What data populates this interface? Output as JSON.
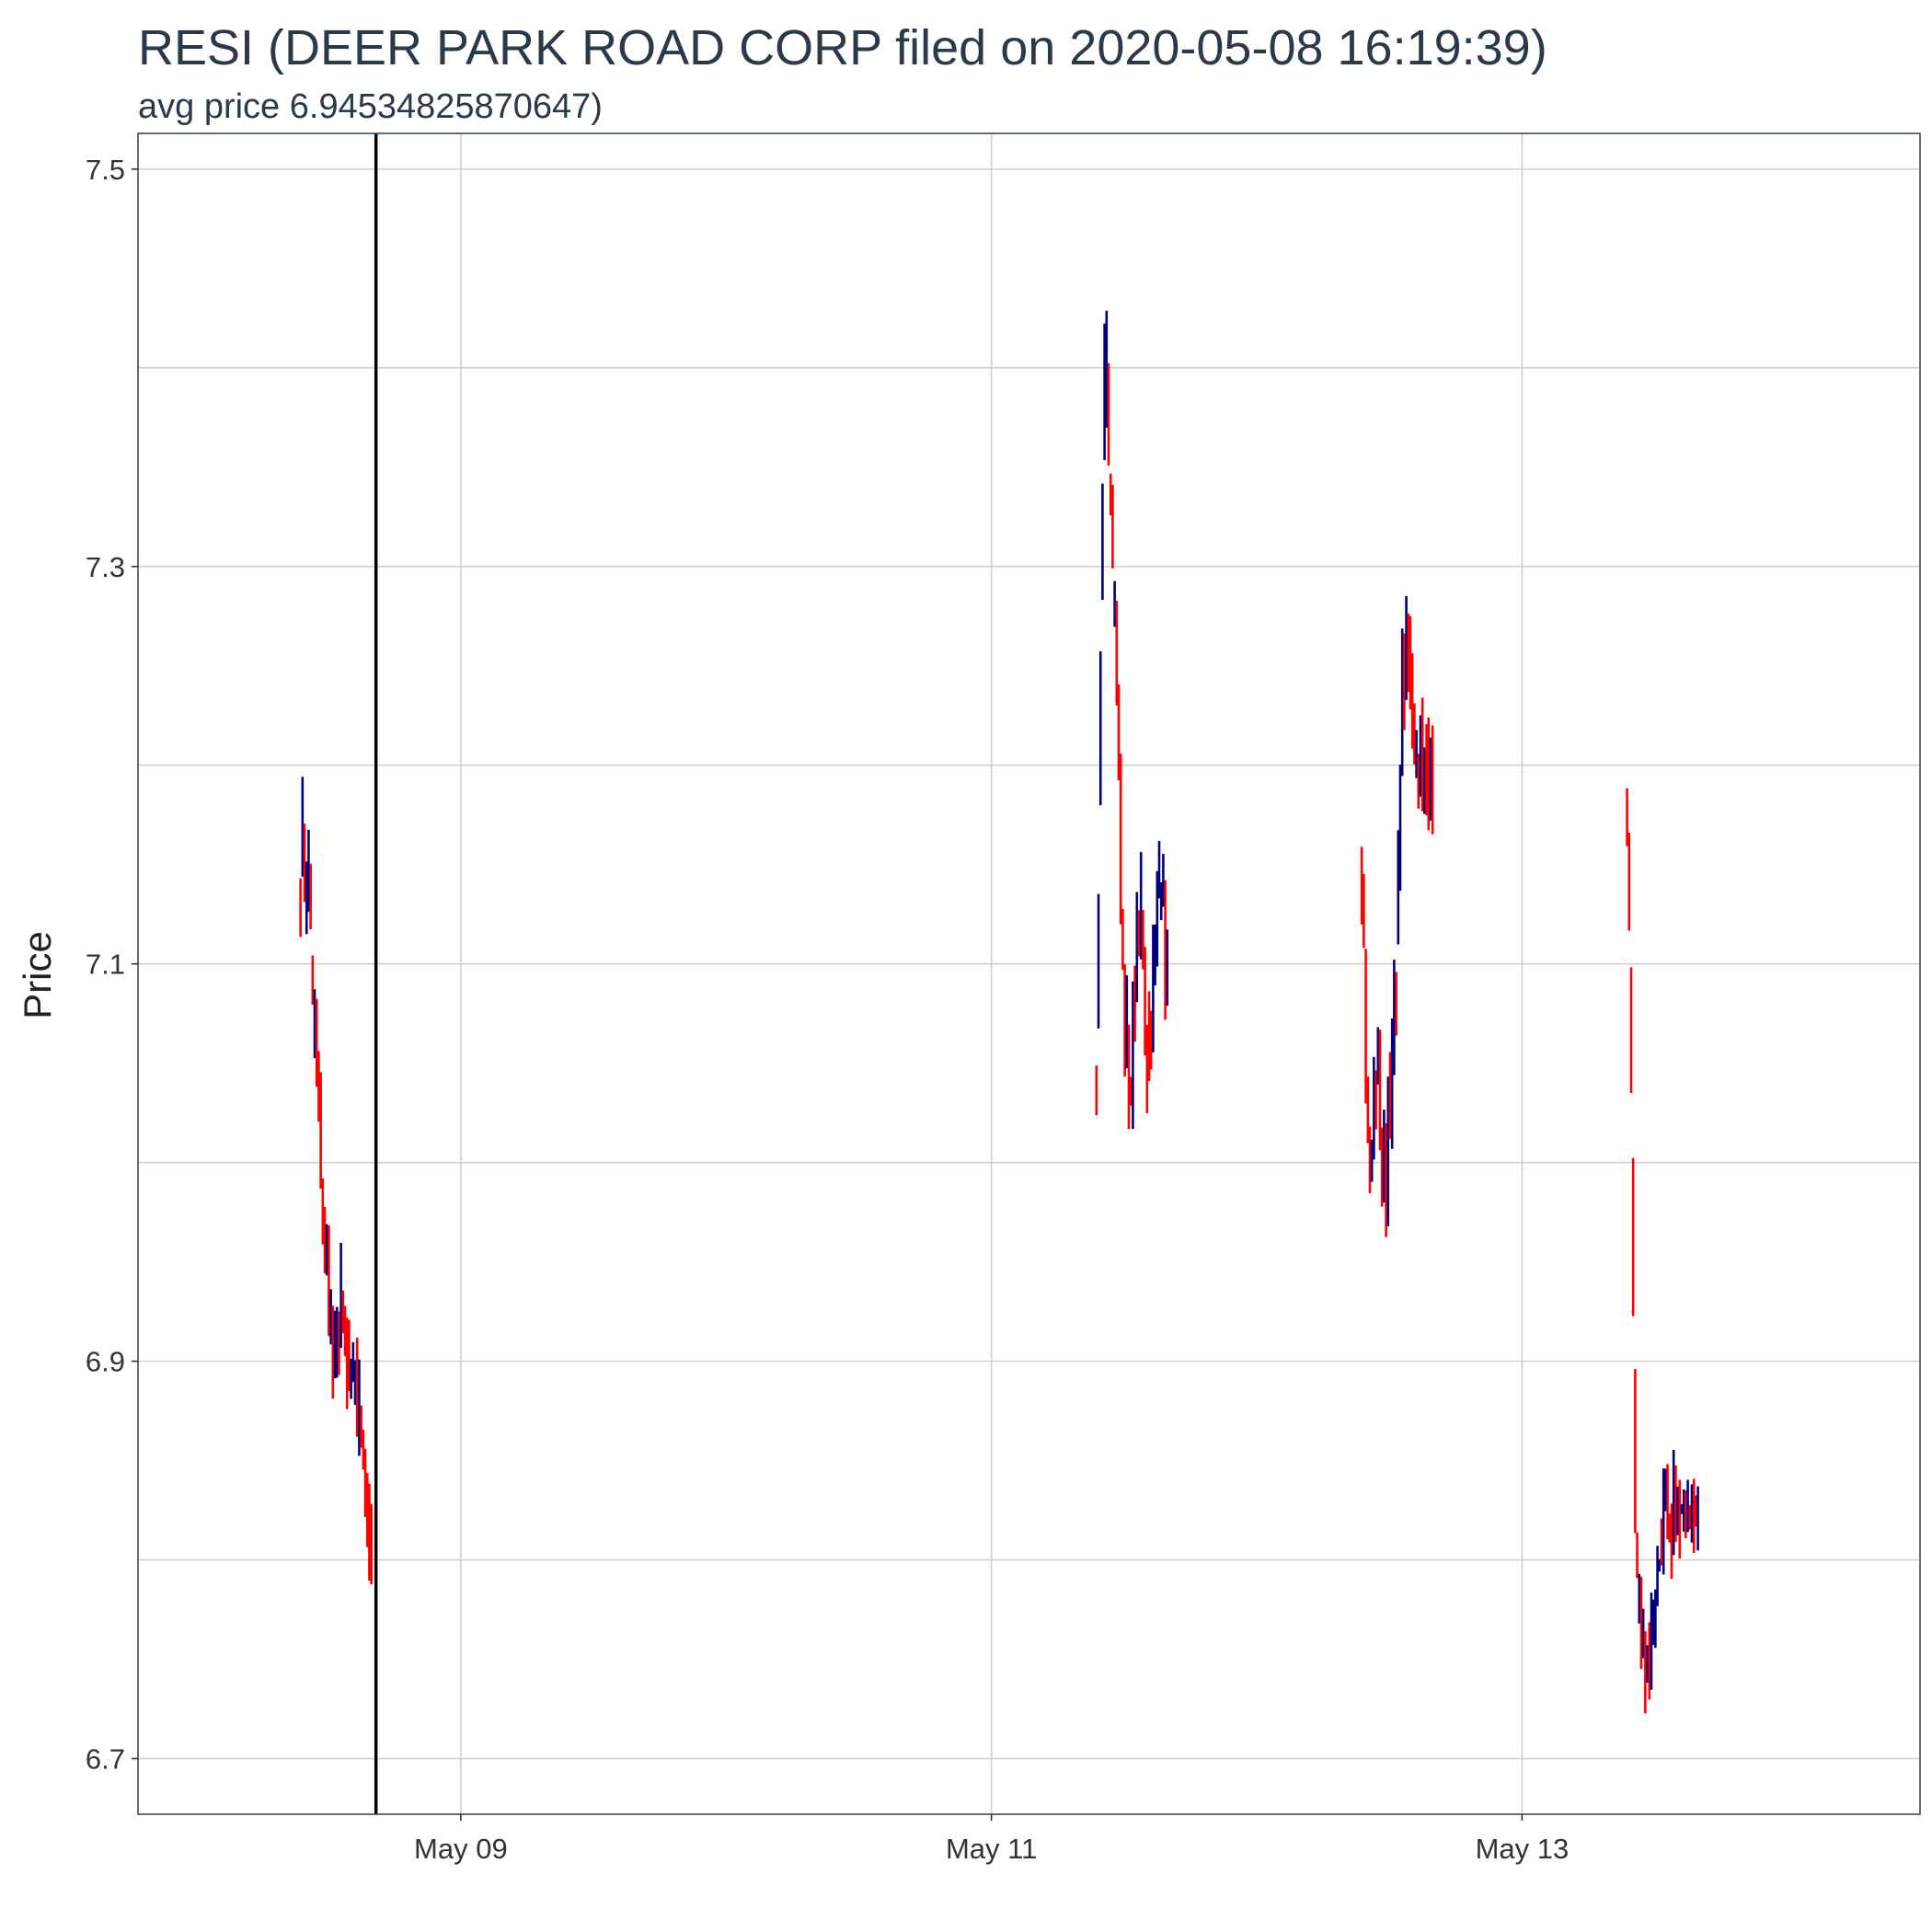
{
  "chart_data": {
    "type": "candlestick",
    "title": "RESI (DEER PARK ROAD CORP filed on 2020-05-08 16:19:39)",
    "subtitle": "avg price 6.94534825870647)",
    "xlabel": "",
    "ylabel": "Price",
    "ylim": [
      6.672,
      7.518
    ],
    "xlim": [
      "2020-05-07 18:48",
      "2020-05-14 12:00"
    ],
    "y_ticks": [
      6.7,
      6.9,
      7.1,
      7.3,
      7.5
    ],
    "y_tick_labels": [
      "6.7",
      "6.9",
      "7.1",
      "7.3",
      "7.5"
    ],
    "y_minor_grid": [
      6.8,
      7.0,
      7.2,
      7.4
    ],
    "x_ticks": [
      "2020-05-09 00:00",
      "2020-05-11 00:00",
      "2020-05-13 00:00"
    ],
    "x_tick_labels": [
      "May 09",
      "May 11",
      "May 13"
    ],
    "filing_line": "2020-05-08 16:19:39",
    "grid": true,
    "colors": {
      "up": "#00007f",
      "down": "#ff0000",
      "filing": "#000000",
      "grid": "#cfcfcf",
      "frame": "#3a4a5c",
      "text": "#2b3a4a"
    },
    "series": [
      {
        "name": "",
        "session": "2020-05-08",
        "start": "2020-05-08 09:30",
        "end": "2020-05-08 16:00",
        "anchors": [
          [
            0,
            7.14
          ],
          [
            0.02,
            7.2
          ],
          [
            0.06,
            7.12
          ],
          [
            0.12,
            7.13
          ],
          [
            0.18,
            7.07
          ],
          [
            0.25,
            7.03
          ],
          [
            0.32,
            6.97
          ],
          [
            0.4,
            6.93
          ],
          [
            0.48,
            6.9
          ],
          [
            0.56,
            6.93
          ],
          [
            0.63,
            6.9
          ],
          [
            0.72,
            6.89
          ],
          [
            0.82,
            6.87
          ],
          [
            0.92,
            6.83
          ],
          [
            1,
            6.8
          ]
        ],
        "spread": 0.026
      },
      {
        "name": "",
        "session": "2020-05-11",
        "start": "2020-05-11 09:30",
        "end": "2020-05-11 16:00",
        "anchors": [
          [
            0,
            7.04
          ],
          [
            0.06,
            7.25
          ],
          [
            0.1,
            7.38
          ],
          [
            0.14,
            7.4
          ],
          [
            0.2,
            7.33
          ],
          [
            0.27,
            7.25
          ],
          [
            0.34,
            7.16
          ],
          [
            0.4,
            7.07
          ],
          [
            0.48,
            7.04
          ],
          [
            0.56,
            7.1
          ],
          [
            0.63,
            7.14
          ],
          [
            0.7,
            7.05
          ],
          [
            0.78,
            7.09
          ],
          [
            0.88,
            7.14
          ],
          [
            1,
            7.09
          ]
        ],
        "spread": 0.03
      },
      {
        "name": "",
        "session": "2020-05-12",
        "start": "2020-05-12 09:30",
        "end": "2020-05-12 16:00",
        "anchors": [
          [
            0,
            7.15
          ],
          [
            0.06,
            7.04
          ],
          [
            0.12,
            7.0
          ],
          [
            0.18,
            7.06
          ],
          [
            0.24,
            7.04
          ],
          [
            0.3,
            6.99
          ],
          [
            0.38,
            7.01
          ],
          [
            0.45,
            7.07
          ],
          [
            0.5,
            7.12
          ],
          [
            0.56,
            7.24
          ],
          [
            0.61,
            7.27
          ],
          [
            0.67,
            7.24
          ],
          [
            0.75,
            7.2
          ],
          [
            0.88,
            7.2
          ],
          [
            1,
            7.19
          ]
        ],
        "spread": 0.03
      },
      {
        "name": "",
        "session": "2020-05-13",
        "start": "2020-05-13 09:30",
        "end": "2020-05-13 16:00",
        "anchors": [
          [
            0,
            7.17
          ],
          [
            0.04,
            7.12
          ],
          [
            0.08,
            6.95
          ],
          [
            0.12,
            6.8
          ],
          [
            0.16,
            6.77
          ],
          [
            0.22,
            6.76
          ],
          [
            0.28,
            6.75
          ],
          [
            0.36,
            6.76
          ],
          [
            0.44,
            6.8
          ],
          [
            0.52,
            6.82
          ],
          [
            0.6,
            6.82
          ],
          [
            0.7,
            6.83
          ],
          [
            0.8,
            6.82
          ],
          [
            0.9,
            6.82
          ],
          [
            1,
            6.83
          ]
        ],
        "spread": 0.022
      }
    ]
  }
}
